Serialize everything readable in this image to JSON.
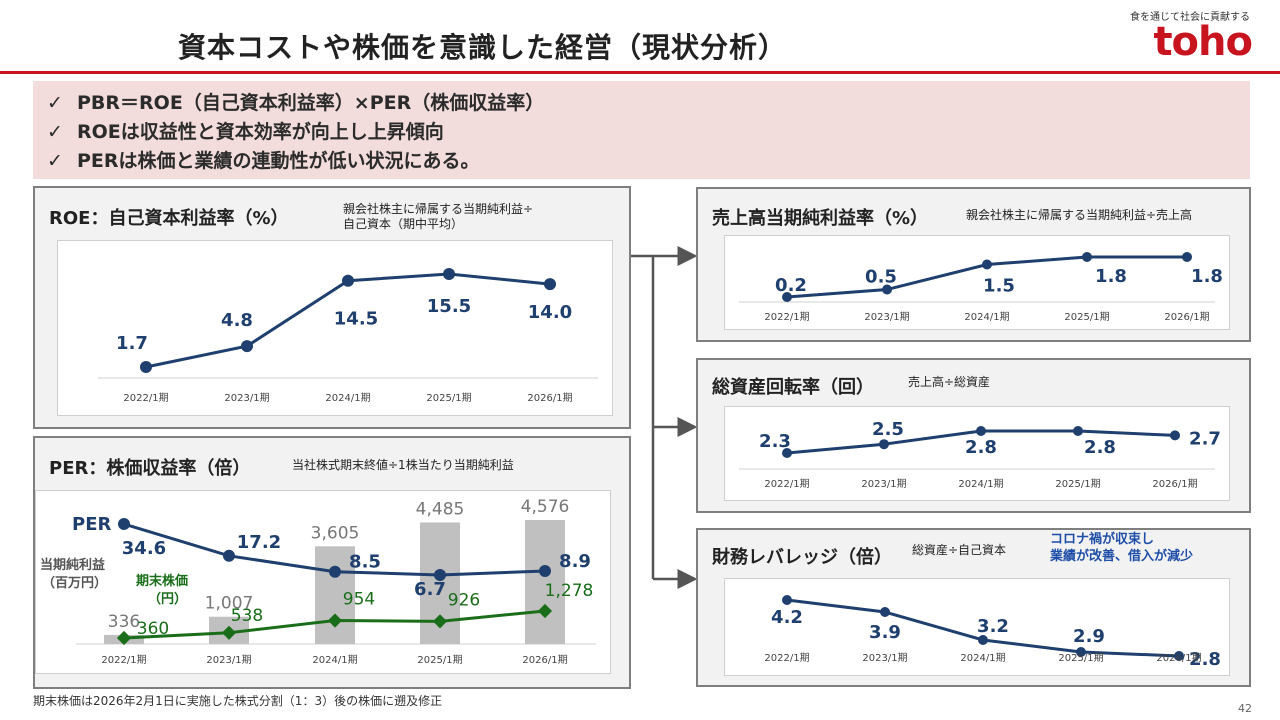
{
  "header": {
    "title": "資本コストや株価を意識した経営（現状分析）",
    "tagline": "食を通じて社会に貢献する",
    "logo_text": "toho",
    "accent_color": "#c8141e"
  },
  "summary": {
    "check_symbol": "✓",
    "lines": [
      "PBR＝ROE（自己資本利益率）×PER（株価収益率）",
      "ROEは収益性と資本効率が向上し上昇傾向",
      "PERは株価と業績の連動性が低い状況にある。"
    ]
  },
  "roe_panel": {
    "title": "ROE：自己資本利益率（%）",
    "note_line1": "親会社株主に帰属する当期純利益÷",
    "note_line2": "自己資本（期中平均）"
  },
  "per_panel": {
    "title": "PER：株価収益率（倍）",
    "note": "当社株式期末終値÷1株当たり当期純利益"
  },
  "margin_panel": {
    "title": "売上高当期純利益率（%）",
    "note": "親会社株主に帰属する当期純利益÷売上高"
  },
  "turnover_panel": {
    "title": "総資産回転率（回）",
    "note": "売上高÷総資産"
  },
  "leverage_panel": {
    "title": "財務レバレッジ（倍）",
    "note": "総資産÷自己資本",
    "comment_line1": "コロナ禍が収束し",
    "comment_line2": "業績が改善、借入が減少"
  },
  "footnote": "期末株価は2026年2月1日に実施した株式分割（1：3）後の株価に遡及修正",
  "page_number": "42",
  "chart_data": [
    {
      "id": "roe",
      "type": "line",
      "title": "ROE：自己資本利益率（%）",
      "categories": [
        "2022/1期",
        "2023/1期",
        "2024/1期",
        "2025/1期",
        "2026/1期"
      ],
      "values": [
        1.7,
        4.8,
        14.5,
        15.5,
        14.0
      ],
      "labels": [
        "1.7",
        "4.8",
        "14.5",
        "15.5",
        "14.0"
      ],
      "color": "#1f3f6e"
    },
    {
      "id": "per",
      "type": "bar+line",
      "title": "PER：株価収益率（倍）",
      "categories": [
        "2022/1期",
        "2023/1期",
        "2024/1期",
        "2025/1期",
        "2026/1期"
      ],
      "series": [
        {
          "name": "当期純利益（百万円）",
          "type": "bar",
          "values": [
            336,
            1007,
            3605,
            4485,
            4576
          ],
          "labels": [
            "336",
            "1,007",
            "3,605",
            "4,485",
            "4,576"
          ],
          "color": "#c0c0c0"
        },
        {
          "name": "PER",
          "type": "line",
          "values": [
            34.6,
            17.2,
            8.5,
            6.7,
            8.9
          ],
          "labels": [
            "34.6",
            "17.2",
            "8.5",
            "6.7",
            "8.9"
          ],
          "color": "#1f3f6e"
        },
        {
          "name": "期末株価（円）",
          "type": "line",
          "values": [
            360,
            538,
            954,
            926,
            1278
          ],
          "labels": [
            "360",
            "538",
            "954",
            "926",
            "1,278"
          ],
          "color": "#1a6e1a"
        }
      ],
      "series_labels": {
        "per": "PER",
        "net_income_1": "当期純利益",
        "net_income_2": "（百万円）",
        "stock_price_1": "期末株価",
        "stock_price_2": "（円）"
      }
    },
    {
      "id": "margin",
      "type": "line",
      "title": "売上高当期純利益率（%）",
      "categories": [
        "2022/1期",
        "2023/1期",
        "2024/1期",
        "2025/1期",
        "2026/1期"
      ],
      "values": [
        0.2,
        0.5,
        1.5,
        1.8,
        1.8
      ],
      "labels": [
        "0.2",
        "0.5",
        "1.5",
        "1.8",
        "1.8"
      ],
      "color": "#1f3f6e"
    },
    {
      "id": "turnover",
      "type": "line",
      "title": "総資産回転率（回）",
      "categories": [
        "2022/1期",
        "2023/1期",
        "2024/1期",
        "2025/1期",
        "2026/1期"
      ],
      "values": [
        2.3,
        2.5,
        2.8,
        2.8,
        2.7
      ],
      "labels": [
        "2.3",
        "2.5",
        "2.8",
        "2.8",
        "2.7"
      ],
      "color": "#1f3f6e"
    },
    {
      "id": "leverage",
      "type": "line",
      "title": "財務レバレッジ（倍）",
      "categories": [
        "2022/1期",
        "2023/1期",
        "2024/1期",
        "2025/1期",
        "2026/1期"
      ],
      "values": [
        4.2,
        3.9,
        3.2,
        2.9,
        2.8
      ],
      "labels": [
        "4.2",
        "3.9",
        "3.2",
        "2.9",
        "2.8"
      ],
      "color": "#1f3f6e"
    }
  ]
}
